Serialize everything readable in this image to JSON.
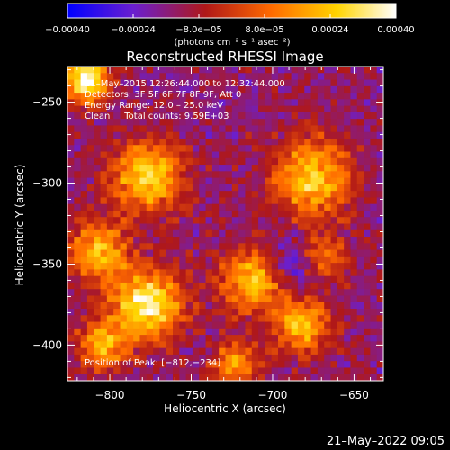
{
  "chart_data": {
    "type": "heatmap",
    "title": "Reconstructed RHESSI Image",
    "xlabel": "Heliocentric X (arcsec)",
    "ylabel": "Heliocentric Y (arcsec)",
    "xlim": [
      -826,
      -632
    ],
    "ylim": [
      -422,
      -228
    ],
    "x_ticks": [
      -800,
      -750,
      -700,
      -650
    ],
    "y_ticks": [
      -400,
      -350,
      -300,
      -250
    ],
    "x_tick_labels": [
      "−800",
      "−750",
      "−700",
      "−650"
    ],
    "y_tick_labels": [
      "−400",
      "−350",
      "−300",
      "−250"
    ],
    "colorbar": {
      "range": [
        -0.0004,
        0.0004
      ],
      "ticks": [
        -0.0004,
        -0.00024,
        -8e-05,
        8e-05,
        0.00024,
        0.0004
      ],
      "tick_labels": [
        "−0.00040",
        "−0.00024",
        "−8.0e−05",
        "8.0e−05",
        "0.00024",
        "0.00040"
      ],
      "unit_label": "(photons cm⁻² s⁻¹ asec⁻²)",
      "colors": [
        "#0000ff",
        "#6a1fd0",
        "#b01818",
        "#ff6a00",
        "#ffd400",
        "#ffffff"
      ]
    },
    "annotations": [
      "21–May–2015 12:26:44.000 to 12:32:44.000",
      "Detectors: 3F 5F 6F 7F 8F 9F, Att 0",
      "Energy Range: 12.0 – 25.0 keV",
      "Clean     Total counts: 9.59E+03"
    ],
    "peak_label": "Position of Peak: [−812,−234]",
    "peak_position": [
      -812,
      -234
    ],
    "grid_size": [
      48,
      48
    ],
    "sources": [
      {
        "x": -815,
        "y": -236,
        "amp": 1.0,
        "sigma": 10
      },
      {
        "x": -777,
        "y": -296,
        "amp": 0.85,
        "sigma": 15
      },
      {
        "x": -676,
        "y": -297,
        "amp": 0.75,
        "sigma": 17
      },
      {
        "x": -808,
        "y": -342,
        "amp": 0.7,
        "sigma": 13
      },
      {
        "x": -777,
        "y": -375,
        "amp": 0.95,
        "sigma": 15
      },
      {
        "x": -804,
        "y": -400,
        "amp": 0.65,
        "sigma": 11
      },
      {
        "x": -712,
        "y": -360,
        "amp": 0.75,
        "sigma": 14
      },
      {
        "x": -682,
        "y": -388,
        "amp": 0.7,
        "sigma": 12
      },
      {
        "x": -670,
        "y": -346,
        "amp": 0.5,
        "sigma": 11
      },
      {
        "x": -722,
        "y": -412,
        "amp": 0.6,
        "sigma": 10
      }
    ],
    "background": -0.35,
    "negative_region": {
      "x": -687,
      "y": -350,
      "amp": -0.5,
      "sigma": 12
    }
  },
  "timestamp": "21–May–2022 09:05"
}
